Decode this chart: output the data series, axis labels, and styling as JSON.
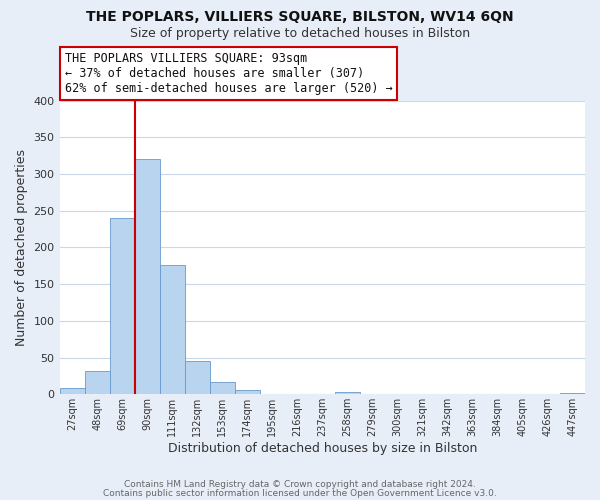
{
  "title1": "THE POPLARS, VILLIERS SQUARE, BILSTON, WV14 6QN",
  "title2": "Size of property relative to detached houses in Bilston",
  "xlabel": "Distribution of detached houses by size in Bilston",
  "ylabel": "Number of detached properties",
  "bar_labels": [
    "27sqm",
    "48sqm",
    "69sqm",
    "90sqm",
    "111sqm",
    "132sqm",
    "153sqm",
    "174sqm",
    "195sqm",
    "216sqm",
    "237sqm",
    "258sqm",
    "279sqm",
    "300sqm",
    "321sqm",
    "342sqm",
    "363sqm",
    "384sqm",
    "405sqm",
    "426sqm",
    "447sqm"
  ],
  "bar_values": [
    8,
    32,
    240,
    320,
    176,
    45,
    17,
    6,
    1,
    0,
    0,
    3,
    0,
    1,
    0,
    0,
    0,
    0,
    0,
    0,
    2
  ],
  "bar_color": "#b8d4ee",
  "bar_edge_color": "#6699cc",
  "vline_color": "#cc0000",
  "annotation_text_line1": "THE POPLARS VILLIERS SQUARE: 93sqm",
  "annotation_text_line2": "← 37% of detached houses are smaller (307)",
  "annotation_text_line3": "62% of semi-detached houses are larger (520) →",
  "ylim": [
    0,
    400
  ],
  "yticks": [
    0,
    50,
    100,
    150,
    200,
    250,
    300,
    350,
    400
  ],
  "footnote1": "Contains HM Land Registry data © Crown copyright and database right 2024.",
  "footnote2": "Contains public sector information licensed under the Open Government Licence v3.0.",
  "bg_color": "#e8eef8",
  "plot_bg_color": "#ffffff",
  "grid_color": "#c8d8e8",
  "title_fontsize": 10,
  "subtitle_fontsize": 9,
  "annotation_fontsize": 8.5
}
